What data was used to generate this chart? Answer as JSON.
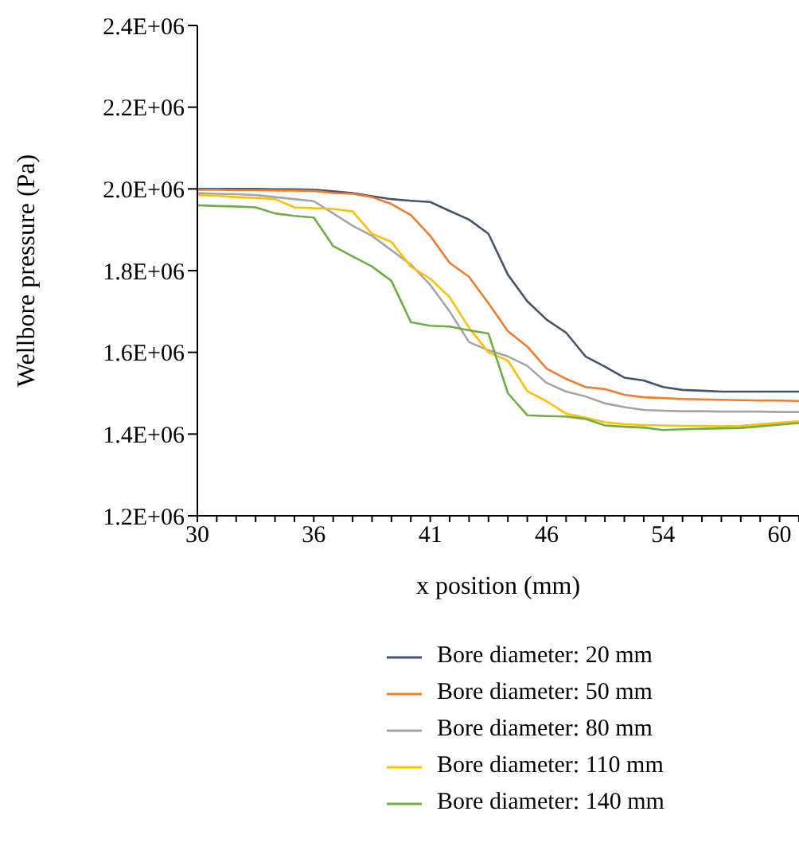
{
  "chart_data": {
    "type": "line",
    "xlabel": "x position (mm)",
    "ylabel": "Wellbore pressure (Pa)",
    "categories": [
      "30",
      null,
      null,
      null,
      null,
      null,
      "36",
      null,
      null,
      null,
      null,
      null,
      "41",
      null,
      null,
      null,
      null,
      null,
      "46",
      null,
      null,
      null,
      null,
      null,
      "54",
      null,
      null,
      null,
      null,
      null,
      "60",
      null
    ],
    "ylim": [
      1200000,
      2400000
    ],
    "yticks": [
      {
        "value": 1200000,
        "label": "1.2E+06"
      },
      {
        "value": 1400000,
        "label": "1.4E+06"
      },
      {
        "value": 1600000,
        "label": "1.6E+06"
      },
      {
        "value": 1800000,
        "label": "1.8E+06"
      },
      {
        "value": 2000000,
        "label": "2.0E+06"
      },
      {
        "value": 2200000,
        "label": "2.2E+06"
      },
      {
        "value": 2400000,
        "label": "2.4E+06"
      }
    ],
    "grid": false,
    "legend": "bottom",
    "marker": "none",
    "line_style": "solid",
    "series": [
      {
        "name": "Bore diameter: 20 mm",
        "color": "#44546a",
        "values": [
          2000000,
          2000000,
          2000000,
          2000000,
          1999000,
          1999000,
          1998000,
          1994000,
          1990000,
          1982000,
          1975000,
          1971000,
          1968000,
          1946000,
          1925000,
          1890000,
          1790000,
          1725000,
          1680000,
          1648000,
          1590000,
          1565000,
          1538000,
          1531000,
          1515000,
          1508000,
          1506000,
          1504000,
          1504000,
          1504000,
          1504000,
          1504000
        ]
      },
      {
        "name": "Bore diameter: 50 mm",
        "color": "#ed7d31",
        "values": [
          1998000,
          1998000,
          1997000,
          1997000,
          1996000,
          1996000,
          1995000,
          1990000,
          1988000,
          1980000,
          1963000,
          1936000,
          1885000,
          1819000,
          1785000,
          1720000,
          1652000,
          1614000,
          1560000,
          1535000,
          1515000,
          1510000,
          1496000,
          1490000,
          1488000,
          1486000,
          1485000,
          1484000,
          1483000,
          1482000,
          1482000,
          1481000
        ]
      },
      {
        "name": "Bore diameter: 80 mm",
        "color": "#a5a5a5",
        "values": [
          1990000,
          1988000,
          1987000,
          1985000,
          1980000,
          1975000,
          1970000,
          1940000,
          1910000,
          1885000,
          1850000,
          1815000,
          1765000,
          1700000,
          1625000,
          1605000,
          1590000,
          1567000,
          1525000,
          1504000,
          1492000,
          1475000,
          1466000,
          1459000,
          1457000,
          1456000,
          1456000,
          1455000,
          1455000,
          1455000,
          1454000,
          1454000
        ]
      },
      {
        "name": "Bore diameter: 110 mm",
        "color": "#ffc000",
        "values": [
          1985000,
          1983000,
          1980000,
          1978000,
          1975000,
          1955000,
          1953000,
          1951000,
          1945000,
          1890000,
          1870000,
          1810000,
          1780000,
          1735000,
          1660000,
          1600000,
          1580000,
          1505000,
          1480000,
          1450000,
          1440000,
          1429000,
          1424000,
          1422000,
          1421000,
          1420000,
          1420000,
          1419000,
          1420000,
          1424000,
          1428000,
          1431000
        ]
      },
      {
        "name": "Bore diameter: 140 mm",
        "color": "#70ad47",
        "values": [
          1960000,
          1958000,
          1957000,
          1955000,
          1940000,
          1934000,
          1930000,
          1860000,
          1835000,
          1810000,
          1775000,
          1674000,
          1665000,
          1663000,
          1654000,
          1646000,
          1500000,
          1446000,
          1444000,
          1443000,
          1437000,
          1421000,
          1418000,
          1416000,
          1410000,
          1412000,
          1413000,
          1414000,
          1415000,
          1419000,
          1423000,
          1427000
        ]
      }
    ]
  }
}
